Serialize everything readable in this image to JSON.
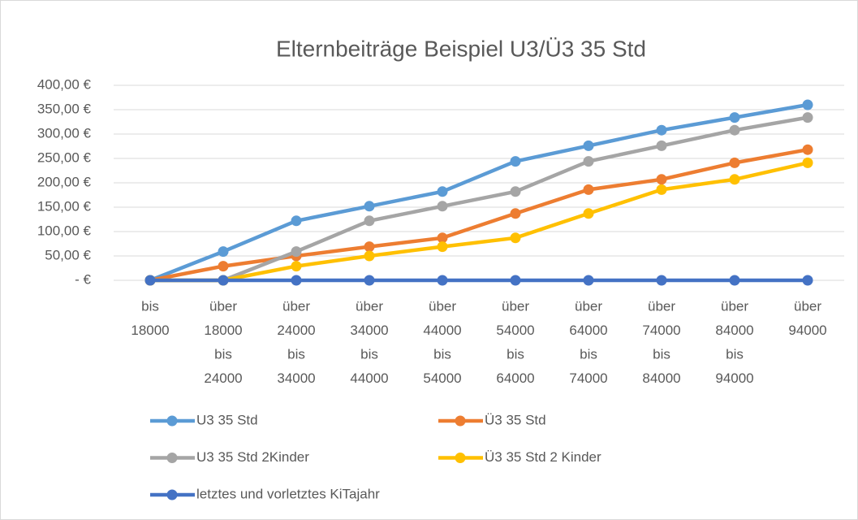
{
  "chart_data": {
    "type": "line",
    "title": "Elternbeiträge Beispiel U3/Ü3 35 Std",
    "categories": [
      [
        "bis",
        "18000"
      ],
      [
        "über",
        "18000",
        "bis",
        "24000"
      ],
      [
        "über",
        "24000",
        "bis",
        "34000"
      ],
      [
        "über",
        "34000",
        "bis",
        "44000"
      ],
      [
        "über",
        "44000",
        "bis",
        "54000"
      ],
      [
        "über",
        "54000",
        "bis",
        "64000"
      ],
      [
        "über",
        "64000",
        "bis",
        "74000"
      ],
      [
        "über",
        "74000",
        "bis",
        "84000"
      ],
      [
        "über",
        "84000",
        "bis",
        "94000"
      ],
      [
        "über",
        "94000"
      ]
    ],
    "series": [
      {
        "name": "U3 35 Std",
        "color": "#5b9bd5",
        "values": [
          0,
          59,
          122,
          152,
          182,
          244,
          276,
          308,
          334,
          360
        ]
      },
      {
        "name": "Ü3 35 Std",
        "color": "#ed7d31",
        "values": [
          0,
          29,
          50,
          69,
          87,
          137,
          186,
          207,
          241,
          268
        ]
      },
      {
        "name": "U3 35 Std 2Kinder",
        "color": "#a5a5a5",
        "values": [
          0,
          0,
          59,
          122,
          152,
          182,
          244,
          276,
          308,
          334
        ]
      },
      {
        "name": "Ü3 35 Std 2 Kinder",
        "color": "#ffc000",
        "values": [
          0,
          0,
          29,
          50,
          69,
          87,
          137,
          186,
          207,
          241
        ]
      },
      {
        "name": "letztes und vorletztes KiTajahr",
        "color": "#4472c4",
        "values": [
          0,
          0,
          0,
          0,
          0,
          0,
          0,
          0,
          0,
          0
        ]
      }
    ],
    "ylim": [
      0,
      400
    ],
    "yticks": [
      {
        "value": 0,
        "label": "-   €"
      },
      {
        "value": 50,
        "label": "50,00 €"
      },
      {
        "value": 100,
        "label": "100,00 €"
      },
      {
        "value": 150,
        "label": "150,00 €"
      },
      {
        "value": 200,
        "label": "200,00 €"
      },
      {
        "value": 250,
        "label": "250,00 €"
      },
      {
        "value": 300,
        "label": "300,00 €"
      },
      {
        "value": 350,
        "label": "350,00 €"
      },
      {
        "value": 400,
        "label": "400,00 €"
      }
    ],
    "grid": true
  }
}
